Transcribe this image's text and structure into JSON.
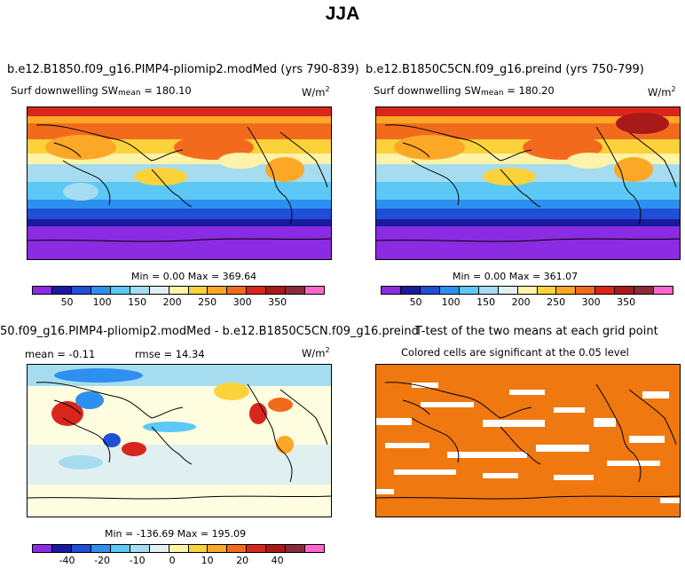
{
  "figure_title": "JJA",
  "panels": [
    {
      "title": "b.e12.B1850.f09_g16.PIMP4-pliomip2.modMed (yrs 790-839)",
      "subtitle": "Surf downwelling SW",
      "mean_label": "mean",
      "mean_value": "= 180.10",
      "units": "W/m",
      "units_exp": "2",
      "stats": "Min =    0.00 Max = 369.64"
    },
    {
      "title": "b.e12.B1850C5CN.f09_g16.preind (yrs 750-799)",
      "subtitle": "Surf downwelling SW",
      "mean_label": "mean",
      "mean_value": "= 180.20",
      "units": "W/m",
      "units_exp": "2",
      "stats": "Min =    0.00 Max = 361.07"
    },
    {
      "title": "50.f09_g16.PIMP4-pliomip2.modMed - b.e12.B1850C5CN.f09_g16.preind",
      "mean_text": "mean = -0.11",
      "rmse_text": "rmse = 14.34",
      "units": "W/m",
      "units_exp": "2",
      "stats": "Min = -136.69 Max = 195.09"
    },
    {
      "title": "T-test of the two means at each grid point",
      "subtitle": "Colored cells are significant at the 0.05 level"
    }
  ],
  "chart_data": [
    {
      "type": "heatmap",
      "title": "b.e12.B1850.f09_g16.PIMP4-pliomip2.modMed (yrs 790-839)",
      "variable": "Surf downwelling SW",
      "units": "W/m2",
      "mean": 180.1,
      "min": 0.0,
      "max": 369.64,
      "colorbar_ticks": [
        "50",
        "100",
        "150",
        "200",
        "250",
        "300",
        "350"
      ],
      "colorbar_colors": [
        "#8b2be2",
        "#1a1a9e",
        "#1f4fd6",
        "#2d8ff0",
        "#5bc8f5",
        "#a6dcef",
        "#e0f0f0",
        "#fff3a8",
        "#fcd23a",
        "#fca726",
        "#f26b1d",
        "#d9261c",
        "#a81a1a",
        "#8a2a3a",
        "#ff66cc"
      ]
    },
    {
      "type": "heatmap",
      "title": "b.e12.B1850C5CN.f09_g16.preind (yrs 750-799)",
      "variable": "Surf downwelling SW",
      "units": "W/m2",
      "mean": 180.2,
      "min": 0.0,
      "max": 361.07,
      "colorbar_ticks": [
        "50",
        "100",
        "150",
        "200",
        "250",
        "300",
        "350"
      ],
      "colorbar_colors": [
        "#8b2be2",
        "#1a1a9e",
        "#1f4fd6",
        "#2d8ff0",
        "#5bc8f5",
        "#a6dcef",
        "#e0f0f0",
        "#fff3a8",
        "#fcd23a",
        "#fca726",
        "#f26b1d",
        "#d9261c",
        "#a81a1a",
        "#8a2a3a",
        "#ff66cc"
      ]
    },
    {
      "type": "heatmap",
      "title": "50.f09_g16.PIMP4-pliomip2.modMed - b.e12.B1850C5CN.f09_g16.preind",
      "units": "W/m2",
      "mean": -0.11,
      "rmse": 14.34,
      "min": -136.69,
      "max": 195.09,
      "colorbar_ticks": [
        "-40",
        "-20",
        "-10",
        "0",
        "10",
        "20",
        "40"
      ],
      "colorbar_colors": [
        "#8b2be2",
        "#1a1a9e",
        "#1f4fd6",
        "#2d8ff0",
        "#5bc8f5",
        "#a6dcef",
        "#e0f0f0",
        "#fff3a8",
        "#fcd23a",
        "#fca726",
        "#f26b1d",
        "#d9261c",
        "#a81a1a",
        "#8a2a3a",
        "#ff66cc"
      ]
    },
    {
      "type": "heatmap",
      "title": "T-test of the two means at each grid point",
      "note": "Colored cells are significant at the 0.05 level",
      "significant_color": "#f07810",
      "insignificant_color": "#ffffff"
    }
  ]
}
